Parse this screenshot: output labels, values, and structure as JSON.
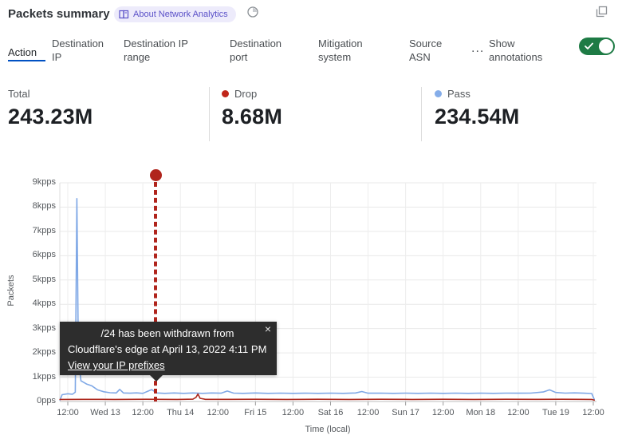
{
  "header": {
    "title": "Packets summary",
    "about_label": "About Network Analytics",
    "icons": {
      "badge": "book-icon",
      "time": "clock-icon",
      "window": "restore-window-icon"
    }
  },
  "tabs": {
    "items": [
      {
        "label": "Action",
        "active": true
      },
      {
        "label": "Destination IP",
        "active": false
      },
      {
        "label": "Destination IP range",
        "active": false
      },
      {
        "label": "Destination port",
        "active": false
      },
      {
        "label": "Mitigation system",
        "active": false
      },
      {
        "label": "Source ASN",
        "active": false
      }
    ],
    "more_label": "...",
    "annotations": {
      "label": "Show annotations",
      "enabled": true
    }
  },
  "stats": [
    {
      "label": "Total",
      "value": "243.23M",
      "color": null
    },
    {
      "label": "Drop",
      "value": "8.68M",
      "color": "#c0261a"
    },
    {
      "label": "Pass",
      "value": "234.54M",
      "color": "#85ade9"
    }
  ],
  "tooltip": {
    "line1": "/24 has been withdrawn from",
    "line2": "Cloudflare's edge at April 13, 2022 4:11 PM",
    "link_label": "View your IP prefixes",
    "close_label": "×"
  },
  "chart_data": {
    "type": "line",
    "xlabel": "Time (local)",
    "ylabel": "Packets",
    "ylim": [
      0,
      9000
    ],
    "y_tick_values": [
      0,
      1000,
      2000,
      3000,
      4000,
      5000,
      6000,
      7000,
      8000,
      9000
    ],
    "y_tick_labels": [
      "0pps",
      "1kpps",
      "2kpps",
      "3kpps",
      "4kpps",
      "5kpps",
      "6kpps",
      "7kpps",
      "8kpps",
      "9kpps"
    ],
    "x_tick_labels": [
      "12:00",
      "Wed 13",
      "12:00",
      "Thu 14",
      "12:00",
      "Fri 15",
      "12:00",
      "Sat 16",
      "12:00",
      "Sun 17",
      "12:00",
      "Mon 18",
      "12:00",
      "Tue 19",
      "12:00"
    ],
    "x_hours_per_tick": 12,
    "grid": true,
    "legend_position": "top-stats-row",
    "series": [
      {
        "name": "Pass",
        "color": "#7fa8e6",
        "points": [
          [
            -2.5,
            60
          ],
          [
            -1.8,
            280
          ],
          [
            0,
            320
          ],
          [
            1.5,
            300
          ],
          [
            2.4,
            380
          ],
          [
            2.9,
            8350
          ],
          [
            3.4,
            1800
          ],
          [
            4.2,
            850
          ],
          [
            6,
            720
          ],
          [
            7.6,
            650
          ],
          [
            9.5,
            480
          ],
          [
            11.5,
            400
          ],
          [
            13.5,
            360
          ],
          [
            15.5,
            350
          ],
          [
            16.6,
            500
          ],
          [
            17.8,
            350
          ],
          [
            20,
            340
          ],
          [
            22,
            355
          ],
          [
            24,
            335
          ],
          [
            26.8,
            490
          ],
          [
            28.5,
            350
          ],
          [
            31,
            335
          ],
          [
            34,
            350
          ],
          [
            37,
            335
          ],
          [
            40,
            350
          ],
          [
            43,
            335
          ],
          [
            46,
            350
          ],
          [
            49,
            340
          ],
          [
            51,
            430
          ],
          [
            53,
            345
          ],
          [
            56,
            335
          ],
          [
            60,
            350
          ],
          [
            64,
            335
          ],
          [
            68,
            345
          ],
          [
            72,
            335
          ],
          [
            76,
            345
          ],
          [
            80,
            335
          ],
          [
            84,
            345
          ],
          [
            88,
            335
          ],
          [
            92,
            350
          ],
          [
            94,
            410
          ],
          [
            96,
            340
          ],
          [
            100,
            345
          ],
          [
            104,
            335
          ],
          [
            108,
            345
          ],
          [
            112,
            335
          ],
          [
            116,
            345
          ],
          [
            120,
            335
          ],
          [
            124,
            345
          ],
          [
            128,
            335
          ],
          [
            132,
            345
          ],
          [
            136,
            335
          ],
          [
            140,
            345
          ],
          [
            144,
            340
          ],
          [
            148,
            345
          ],
          [
            152,
            390
          ],
          [
            154,
            480
          ],
          [
            156,
            370
          ],
          [
            159,
            345
          ],
          [
            162,
            355
          ],
          [
            165,
            340
          ],
          [
            167.5,
            330
          ],
          [
            168.3,
            90
          ]
        ]
      },
      {
        "name": "Drop",
        "color": "#ae2a1f",
        "points": [
          [
            -2.5,
            85
          ],
          [
            5,
            90
          ],
          [
            15,
            85
          ],
          [
            25,
            92
          ],
          [
            35,
            86
          ],
          [
            40,
            95
          ],
          [
            41,
            170
          ],
          [
            41.6,
            310
          ],
          [
            42.3,
            130
          ],
          [
            44,
            90
          ],
          [
            52,
            88
          ],
          [
            60,
            92
          ],
          [
            70,
            86
          ],
          [
            80,
            92
          ],
          [
            90,
            87
          ],
          [
            100,
            92
          ],
          [
            110,
            87
          ],
          [
            120,
            92
          ],
          [
            130,
            87
          ],
          [
            140,
            92
          ],
          [
            150,
            88
          ],
          [
            158,
            92
          ],
          [
            164,
            88
          ],
          [
            167.5,
            86
          ],
          [
            168.3,
            55
          ]
        ]
      }
    ],
    "annotation": {
      "t_hours": 28.2,
      "time_label": "April 13, 2022 4:11 PM",
      "text": "/24 has been withdrawn from Cloudflare's edge at April 13, 2022 4:11 PM",
      "color": "#b0241c"
    }
  }
}
